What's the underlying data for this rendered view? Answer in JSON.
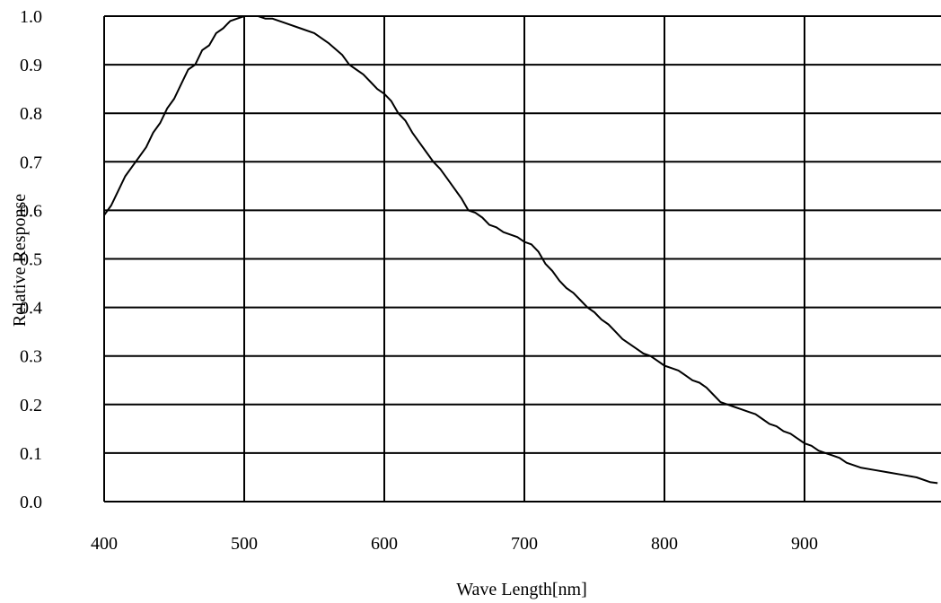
{
  "chart_data": {
    "type": "line",
    "xlabel": "Wave Length[nm]",
    "ylabel": "Relative Response",
    "xlim": [
      400,
      995
    ],
    "ylim": [
      0.0,
      1.0
    ],
    "x_ticks": [
      400,
      500,
      600,
      700,
      800,
      900
    ],
    "x_tick_labels": [
      "400",
      "500",
      "600",
      "700",
      "800",
      "900"
    ],
    "y_ticks": [
      0.0,
      0.1,
      0.2,
      0.3,
      0.4,
      0.5,
      0.6,
      0.7,
      0.8,
      0.9,
      1.0
    ],
    "y_tick_labels": [
      "0.0",
      "0.1",
      "0.2",
      "0.3",
      "0.4",
      "0.5",
      "0.6",
      "0.7",
      "0.8",
      "0.9",
      "1.0"
    ],
    "grid": true,
    "legend": "none",
    "line_color": "#000000",
    "series": [
      {
        "x": [
          400,
          405,
          410,
          415,
          420,
          425,
          430,
          435,
          440,
          445,
          450,
          455,
          460,
          465,
          470,
          475,
          480,
          485,
          490,
          495,
          500,
          505,
          510,
          515,
          520,
          530,
          540,
          550,
          560,
          570,
          575,
          580,
          585,
          590,
          595,
          600,
          605,
          610,
          615,
          620,
          625,
          630,
          635,
          640,
          645,
          650,
          655,
          660,
          665,
          670,
          675,
          680,
          685,
          690,
          695,
          700,
          705,
          710,
          715,
          720,
          725,
          730,
          735,
          740,
          745,
          750,
          755,
          760,
          765,
          770,
          775,
          780,
          785,
          790,
          795,
          800,
          805,
          810,
          815,
          820,
          825,
          830,
          835,
          840,
          845,
          850,
          855,
          860,
          865,
          870,
          875,
          880,
          885,
          890,
          895,
          900,
          905,
          910,
          915,
          920,
          925,
          930,
          940,
          950,
          960,
          970,
          980,
          990,
          995
        ],
        "values": [
          0.59,
          0.61,
          0.64,
          0.67,
          0.69,
          0.71,
          0.73,
          0.76,
          0.78,
          0.81,
          0.83,
          0.86,
          0.89,
          0.9,
          0.93,
          0.94,
          0.965,
          0.975,
          0.99,
          0.995,
          1.0,
          1.0,
          1.0,
          0.995,
          0.995,
          0.985,
          0.975,
          0.965,
          0.945,
          0.92,
          0.9,
          0.89,
          0.88,
          0.865,
          0.85,
          0.84,
          0.825,
          0.8,
          0.785,
          0.76,
          0.74,
          0.72,
          0.7,
          0.685,
          0.665,
          0.645,
          0.625,
          0.6,
          0.595,
          0.585,
          0.57,
          0.565,
          0.555,
          0.55,
          0.545,
          0.535,
          0.53,
          0.515,
          0.49,
          0.475,
          0.455,
          0.44,
          0.43,
          0.415,
          0.4,
          0.39,
          0.375,
          0.365,
          0.35,
          0.335,
          0.325,
          0.315,
          0.305,
          0.3,
          0.29,
          0.28,
          0.275,
          0.27,
          0.26,
          0.25,
          0.245,
          0.235,
          0.22,
          0.205,
          0.2,
          0.195,
          0.19,
          0.185,
          0.18,
          0.17,
          0.16,
          0.155,
          0.145,
          0.14,
          0.13,
          0.12,
          0.115,
          0.105,
          0.1,
          0.095,
          0.09,
          0.08,
          0.07,
          0.065,
          0.06,
          0.055,
          0.05,
          0.04,
          0.038
        ]
      }
    ]
  }
}
